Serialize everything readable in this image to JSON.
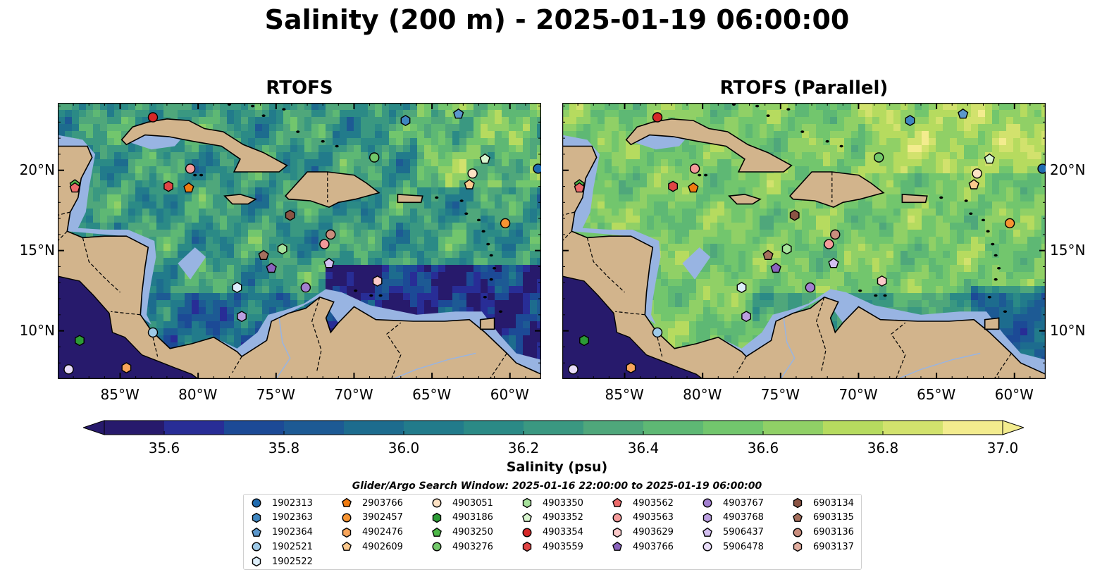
{
  "title": "Salinity (200 m) - 2025-01-19 06:00:00",
  "panels": [
    {
      "title": "RTOFS"
    },
    {
      "title": "RTOFS (Parallel)"
    }
  ],
  "lon_labels": [
    "85°W",
    "80°W",
    "75°W",
    "70°W",
    "65°W",
    "60°W"
  ],
  "lat_labels": [
    "20°N",
    "15°N",
    "10°N"
  ],
  "colorbar": {
    "label": "Salinity (psu)",
    "ticks": [
      "35.6",
      "35.8",
      "36.0",
      "36.2",
      "36.4",
      "36.6",
      "36.8",
      "37.0"
    ],
    "colors": [
      "#271a6c",
      "#282d96",
      "#1c4a96",
      "#1d5a94",
      "#1d6c8e",
      "#227b8b",
      "#2b8a86",
      "#3a9881",
      "#4fa77b",
      "#5eb874",
      "#72c66d",
      "#90d066",
      "#b6db5f",
      "#d2e26d",
      "#f3ec8e"
    ]
  },
  "search_window": "Glider/Argo Search Window: 2025-01-16 22:00:00 to 2025-01-19 06:00:00",
  "legend": [
    {
      "id": "1902313",
      "shape": "circle",
      "color": "#1f6bb0"
    },
    {
      "id": "1902363",
      "shape": "hexagon",
      "color": "#3f86c0"
    },
    {
      "id": "1902364",
      "shape": "pentagon",
      "color": "#5b97cc"
    },
    {
      "id": "1902521",
      "shape": "circle",
      "color": "#9ecae8"
    },
    {
      "id": "1902522",
      "shape": "hexagon",
      "color": "#ddeefa"
    },
    {
      "id": "2903766",
      "shape": "pentagon",
      "color": "#f07b10"
    },
    {
      "id": "3902457",
      "shape": "circle",
      "color": "#f79432"
    },
    {
      "id": "4902476",
      "shape": "hexagon",
      "color": "#f8a55a"
    },
    {
      "id": "4902609",
      "shape": "pentagon",
      "color": "#fbc98e"
    },
    {
      "id": "4903051",
      "shape": "circle",
      "color": "#fde2c4"
    },
    {
      "id": "4903186",
      "shape": "hexagon",
      "color": "#2c9b36"
    },
    {
      "id": "4903250",
      "shape": "pentagon",
      "color": "#4db848"
    },
    {
      "id": "4903276",
      "shape": "circle",
      "color": "#73c86a"
    },
    {
      "id": "4903350",
      "shape": "hexagon",
      "color": "#a6e29b"
    },
    {
      "id": "4903352",
      "shape": "pentagon",
      "color": "#d8f5cf"
    },
    {
      "id": "4903354",
      "shape": "circle",
      "color": "#d62728"
    },
    {
      "id": "4903559",
      "shape": "hexagon",
      "color": "#e04545"
    },
    {
      "id": "4903562",
      "shape": "pentagon",
      "color": "#ec6a6a"
    },
    {
      "id": "4903563",
      "shape": "circle",
      "color": "#f49a9a"
    },
    {
      "id": "4903629",
      "shape": "hexagon",
      "color": "#fbc9c9"
    },
    {
      "id": "4903766",
      "shape": "pentagon",
      "color": "#8a63bd"
    },
    {
      "id": "4903767",
      "shape": "circle",
      "color": "#a27fd0"
    },
    {
      "id": "4903768",
      "shape": "hexagon",
      "color": "#bb9fe0"
    },
    {
      "id": "5906437",
      "shape": "pentagon",
      "color": "#d3bff0"
    },
    {
      "id": "5906478",
      "shape": "circle",
      "color": "#e8dcf8"
    },
    {
      "id": "6903134",
      "shape": "hexagon",
      "color": "#8b5444"
    },
    {
      "id": "6903135",
      "shape": "pentagon",
      "color": "#a56f5d"
    },
    {
      "id": "6903136",
      "shape": "circle",
      "color": "#c98d7d"
    },
    {
      "id": "6903137",
      "shape": "hexagon",
      "color": "#e1ad9f"
    }
  ],
  "map_colors": {
    "land": "#d2b48c",
    "shelf": "#98b4e2",
    "coast": "#000000"
  },
  "stations": [
    {
      "id": "4903354",
      "lon": -82.9,
      "lat": 23.3
    },
    {
      "id": "1902363",
      "lon": -66.7,
      "lat": 23.1
    },
    {
      "id": "1902364",
      "lon": -63.3,
      "lat": 23.5
    },
    {
      "id": "4903352",
      "lon": -61.6,
      "lat": 20.7
    },
    {
      "id": "4903051",
      "lon": -62.4,
      "lat": 19.8
    },
    {
      "id": "4902609",
      "lon": -62.6,
      "lat": 19.1
    },
    {
      "id": "1902313",
      "lon": -58.2,
      "lat": 20.1
    },
    {
      "id": "4903276",
      "lon": -68.7,
      "lat": 20.8
    },
    {
      "id": "4903563",
      "lon": -80.5,
      "lat": 20.1
    },
    {
      "id": "4903559",
      "lon": -81.9,
      "lat": 19.0
    },
    {
      "id": "2903766",
      "lon": -80.6,
      "lat": 18.9
    },
    {
      "id": "4903250",
      "lon": -87.9,
      "lat": 19.1
    },
    {
      "id": "4903562",
      "lon": -87.9,
      "lat": 18.9
    },
    {
      "id": "6903134",
      "lon": -74.1,
      "lat": 17.2
    },
    {
      "id": "3902457",
      "lon": -60.3,
      "lat": 16.7
    },
    {
      "id": "6903136",
      "lon": -71.5,
      "lat": 16.0
    },
    {
      "id": "4903563",
      "lon": -71.9,
      "lat": 15.4
    },
    {
      "id": "4903350",
      "lon": -74.6,
      "lat": 15.1
    },
    {
      "id": "6903135",
      "lon": -75.8,
      "lat": 14.7
    },
    {
      "id": "4903766",
      "lon": -75.3,
      "lat": 13.9
    },
    {
      "id": "5906437",
      "lon": -71.6,
      "lat": 14.2
    },
    {
      "id": "4903629",
      "lon": -68.5,
      "lat": 13.1
    },
    {
      "id": "1902522",
      "lon": -77.5,
      "lat": 12.7
    },
    {
      "id": "4903767",
      "lon": -73.1,
      "lat": 12.7
    },
    {
      "id": "4903768",
      "lon": -77.2,
      "lat": 10.9
    },
    {
      "id": "1902521",
      "lon": -82.9,
      "lat": 9.9
    },
    {
      "id": "4903186",
      "lon": -87.6,
      "lat": 9.4
    },
    {
      "id": "5906478",
      "lon": -88.3,
      "lat": 7.6
    },
    {
      "id": "4902476",
      "lon": -84.6,
      "lat": 7.7
    }
  ]
}
